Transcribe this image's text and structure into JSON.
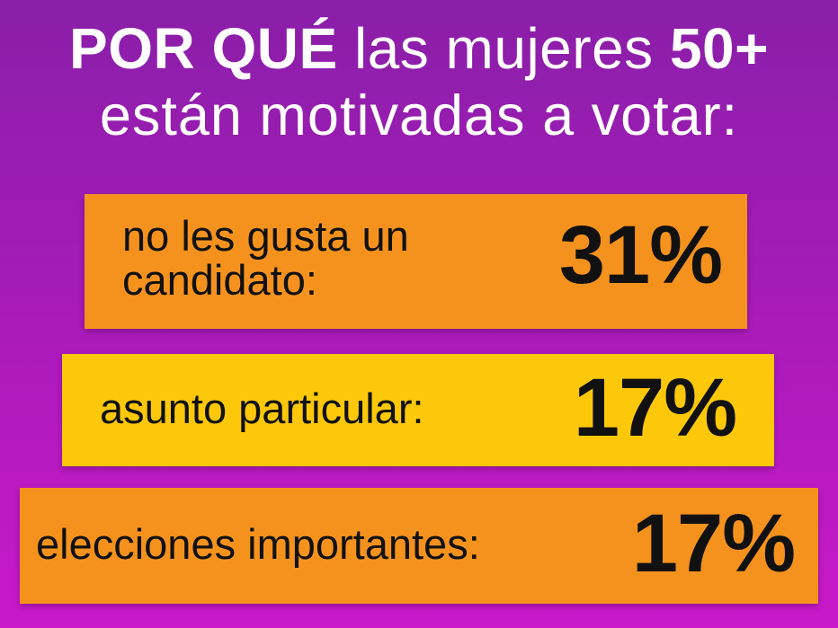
{
  "title": {
    "line1_bold_start": "POR QUÉ",
    "line1_light": "las mujeres",
    "line1_bold_end": "50+",
    "line2": "están motivadas a votar:"
  },
  "reasons": [
    {
      "label": "no les gusta un candidato:",
      "value": "31%"
    },
    {
      "label": "asunto particular:",
      "value": "17%"
    },
    {
      "label": "elecciones importantes:",
      "value": "17%"
    }
  ],
  "colors": {
    "background_top": "#8a1fa8",
    "background_bottom": "#c919c9",
    "card_orange": "#f5921e",
    "card_yellow": "#fdc80a",
    "title_text": "#ffffff",
    "card_text": "#111111"
  }
}
